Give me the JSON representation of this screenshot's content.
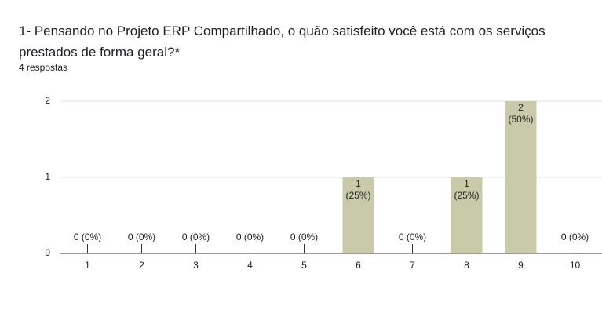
{
  "chart_data": {
    "type": "bar",
    "title": "1- Pensando no Projeto ERP Compartilhado, o quão satisfeito você está com os serviços prestados de forma geral?*",
    "subtitle": "4 respostas",
    "categories": [
      "1",
      "2",
      "3",
      "4",
      "5",
      "6",
      "7",
      "8",
      "9",
      "10"
    ],
    "values": [
      0,
      0,
      0,
      0,
      0,
      1,
      0,
      1,
      2,
      0
    ],
    "value_labels": [
      "0 (0%)",
      "0 (0%)",
      "0 (0%)",
      "0 (0%)",
      "0 (0%)",
      "1\n(25%)",
      "0 (0%)",
      "1\n(25%)",
      "2\n(50%)",
      "0 (0%)"
    ],
    "color": "#c9caa9",
    "ylim": [
      0,
      2
    ],
    "yticks": [
      0,
      1,
      2
    ],
    "grid": true
  }
}
